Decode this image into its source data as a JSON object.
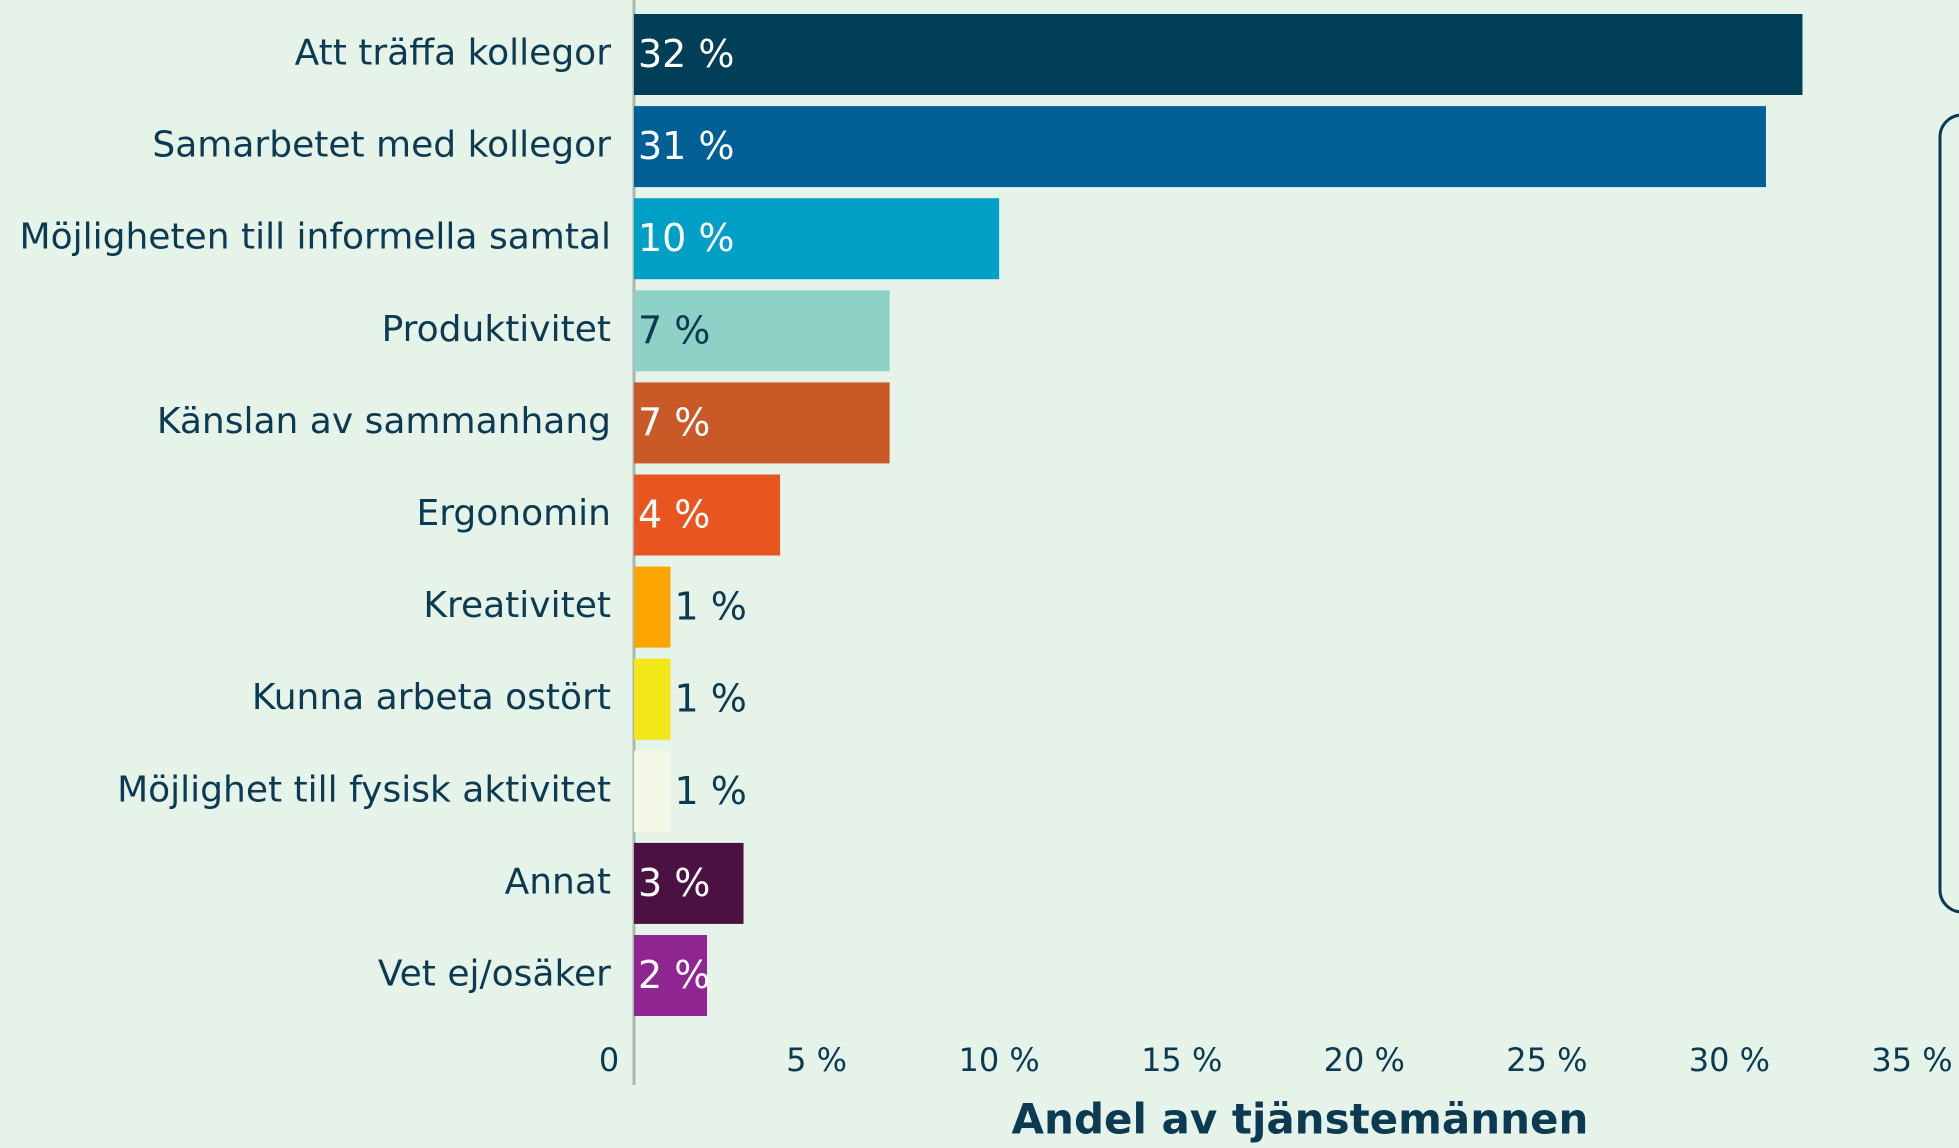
{
  "chart_data": {
    "type": "bar",
    "orientation": "horizontal",
    "categories": [
      "Att träffa kollegor",
      "Samarbetet med kollegor",
      "Möjligheten till informella samtal",
      "Produktivitet",
      "Känslan av sammanhang",
      "Ergonomin",
      "Kreativitet",
      "Kunna arbeta ostört",
      "Möjlighet till fysisk aktivitet",
      "Annat",
      "Vet ej/osäker"
    ],
    "values": [
      32,
      31,
      10,
      7,
      7,
      4,
      1,
      1,
      1,
      3,
      2
    ],
    "value_labels": [
      "32 %",
      "31 %",
      "10 %",
      "7 %",
      "7 %",
      "4 %",
      "1 %",
      "1 %",
      "1 %",
      "3 %",
      "2 %"
    ],
    "colors": [
      "#003f57",
      "#006096",
      "#00a0c6",
      "#8dd1c7",
      "#c95a28",
      "#e9551f",
      "#fca500",
      "#f3e619",
      "#f3f9e6",
      "#4a1142",
      "#8f2591"
    ],
    "xlabel": "Andel av tjänstemännen",
    "xlim": [
      0,
      35
    ],
    "xticks": [
      0,
      {
        "value": 5,
        "label": "5 %"
      },
      {
        "value": 10,
        "label": "10 %"
      },
      {
        "value": 15,
        "label": "15 %"
      },
      {
        "value": 20,
        "label": "20 %"
      },
      {
        "value": 25,
        "label": "25 %"
      },
      {
        "value": 30,
        "label": "30 %"
      },
      {
        "value": 35,
        "label": "35 %"
      }
    ],
    "grid": false
  }
}
